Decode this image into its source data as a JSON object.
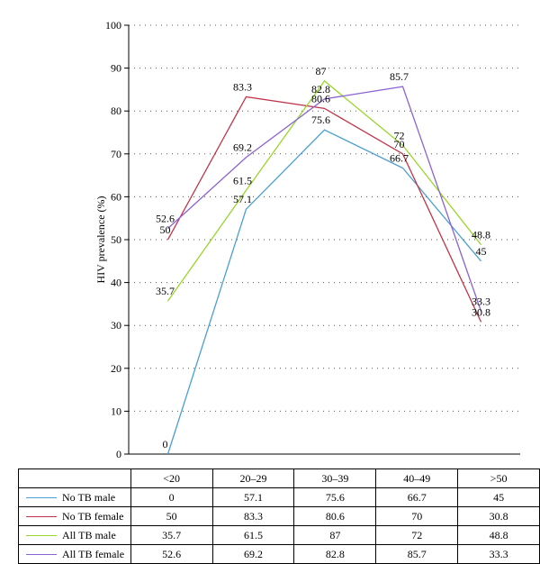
{
  "chart_data": {
    "type": "line",
    "ylabel": "HIV prevalence (%)",
    "ylim": [
      0,
      100
    ],
    "yticks": [
      0,
      10,
      20,
      30,
      40,
      50,
      60,
      70,
      80,
      90,
      100
    ],
    "categories": [
      "<20",
      "20–29",
      "30–39",
      "40–49",
      ">50"
    ],
    "grid": "horizontal dotted",
    "legend": "table below chart",
    "series": [
      {
        "name": "No TB male",
        "color": "#4a9fd6",
        "values": [
          0,
          57.1,
          75.6,
          66.7,
          45
        ]
      },
      {
        "name": "No TB female",
        "color": "#c0354a",
        "values": [
          50,
          83.3,
          80.6,
          70,
          30.8
        ]
      },
      {
        "name": "All TB male",
        "color": "#99d62b",
        "values": [
          35.7,
          61.5,
          87,
          72,
          48.8
        ]
      },
      {
        "name": "All TB female",
        "color": "#8a63d2",
        "values": [
          52.6,
          69.2,
          82.8,
          85.7,
          33.3
        ]
      }
    ]
  }
}
